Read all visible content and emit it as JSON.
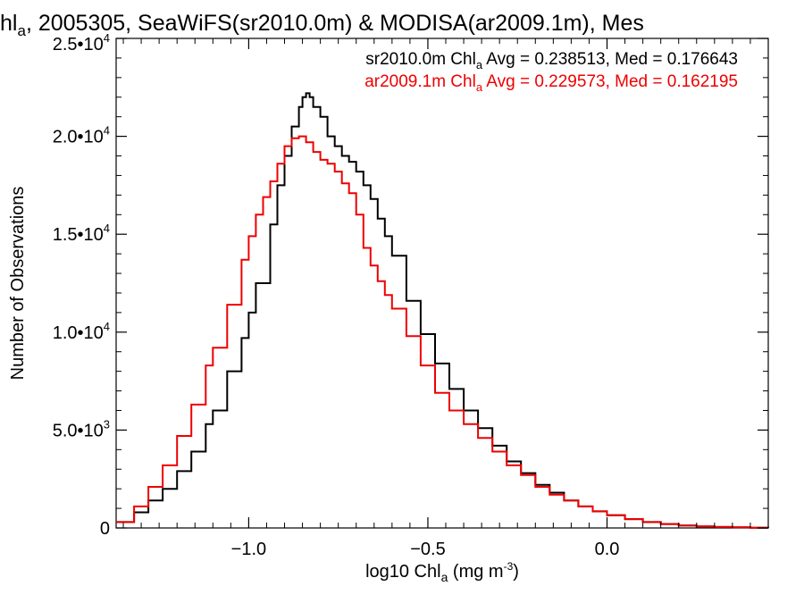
{
  "chart_data": {
    "type": "line",
    "title": {
      "pre": "hl",
      "sub": "a",
      "post": ", 2005305, SeaWiFS(sr2010.0m) & MODISA(ar2009.1m), Mes"
    },
    "xlabel": {
      "pre": "log10 Chl",
      "sub": "a",
      "mid": " (mg m",
      "sup": "-3",
      "post": ")"
    },
    "ylabel": "Number of Observations",
    "xlim": [
      -1.37,
      0.45
    ],
    "ylim": [
      0,
      25000
    ],
    "x_ticks": [
      {
        "value": -1.0,
        "label": "−1.0"
      },
      {
        "value": -0.5,
        "label": "−0.5"
      },
      {
        "value": 0.0,
        "label": "0.0"
      }
    ],
    "y_ticks": [
      {
        "value": 0,
        "mant": "0",
        "exp": ""
      },
      {
        "value": 5000,
        "mant": "5.0•10",
        "exp": "3"
      },
      {
        "value": 10000,
        "mant": "1.0•10",
        "exp": "4"
      },
      {
        "value": 15000,
        "mant": "1.5•10",
        "exp": "4"
      },
      {
        "value": 20000,
        "mant": "2.0•10",
        "exp": "4"
      },
      {
        "value": 25000,
        "mant": "2.5•10",
        "exp": "4"
      }
    ],
    "legend": [
      {
        "pre": "sr2010.0m Chl",
        "sub": "a",
        "post": " Avg = 0.238513, Med = 0.176643",
        "color": "#000000"
      },
      {
        "pre": "ar2009.1m Chl",
        "sub": "a",
        "post": " Avg = 0.229573, Med = 0.162195",
        "color": "#ee0000"
      }
    ],
    "legend_position": "top-right",
    "series": [
      {
        "color": "#000000",
        "x": [
          -1.37,
          -1.32,
          -1.28,
          -1.24,
          -1.2,
          -1.16,
          -1.12,
          -1.1,
          -1.06,
          -1.02,
          -1.0,
          -0.98,
          -0.94,
          -0.92,
          -0.9,
          -0.88,
          -0.86,
          -0.85,
          -0.84,
          -0.83,
          -0.82,
          -0.8,
          -0.78,
          -0.76,
          -0.74,
          -0.72,
          -0.7,
          -0.68,
          -0.66,
          -0.64,
          -0.62,
          -0.6,
          -0.56,
          -0.52,
          -0.48,
          -0.44,
          -0.4,
          -0.36,
          -0.32,
          -0.28,
          -0.24,
          -0.2,
          -0.16,
          -0.12,
          -0.08,
          -0.04,
          0.0,
          0.05,
          0.1,
          0.15,
          0.2,
          0.25,
          0.3,
          0.35,
          0.4,
          0.45
        ],
        "values": [
          300,
          800,
          1400,
          2000,
          2900,
          3900,
          5300,
          6000,
          8000,
          9700,
          11000,
          12500,
          15500,
          17500,
          19000,
          20500,
          21500,
          22000,
          22200,
          22000,
          21500,
          21000,
          20000,
          19500,
          19000,
          18700,
          18200,
          17500,
          16800,
          15800,
          14900,
          13900,
          11600,
          9900,
          8400,
          7100,
          6000,
          5100,
          4200,
          3400,
          2800,
          2200,
          1800,
          1400,
          1100,
          850,
          650,
          450,
          300,
          200,
          130,
          80,
          50,
          30,
          15,
          8
        ]
      },
      {
        "color": "#ee0000",
        "x": [
          -1.37,
          -1.32,
          -1.28,
          -1.24,
          -1.2,
          -1.16,
          -1.12,
          -1.1,
          -1.06,
          -1.02,
          -1.0,
          -0.98,
          -0.96,
          -0.94,
          -0.92,
          -0.9,
          -0.88,
          -0.86,
          -0.84,
          -0.82,
          -0.8,
          -0.78,
          -0.76,
          -0.74,
          -0.72,
          -0.7,
          -0.68,
          -0.66,
          -0.64,
          -0.62,
          -0.6,
          -0.56,
          -0.52,
          -0.48,
          -0.44,
          -0.4,
          -0.36,
          -0.32,
          -0.28,
          -0.24,
          -0.2,
          -0.16,
          -0.12,
          -0.08,
          -0.04,
          0.0,
          0.05,
          0.1,
          0.15,
          0.2,
          0.25,
          0.3,
          0.35,
          0.4,
          0.45
        ],
        "values": [
          300,
          1100,
          2100,
          3200,
          4700,
          6300,
          8300,
          9200,
          11400,
          13700,
          14900,
          16000,
          16900,
          17700,
          18600,
          19500,
          19900,
          20000,
          19700,
          19200,
          18800,
          18600,
          18200,
          17600,
          17100,
          16000,
          14300,
          13400,
          12600,
          11900,
          11200,
          9800,
          8300,
          6900,
          6000,
          5300,
          4600,
          3900,
          3200,
          2700,
          2100,
          1700,
          1400,
          1100,
          850,
          650,
          450,
          300,
          200,
          130,
          80,
          50,
          30,
          15,
          8
        ]
      }
    ]
  }
}
